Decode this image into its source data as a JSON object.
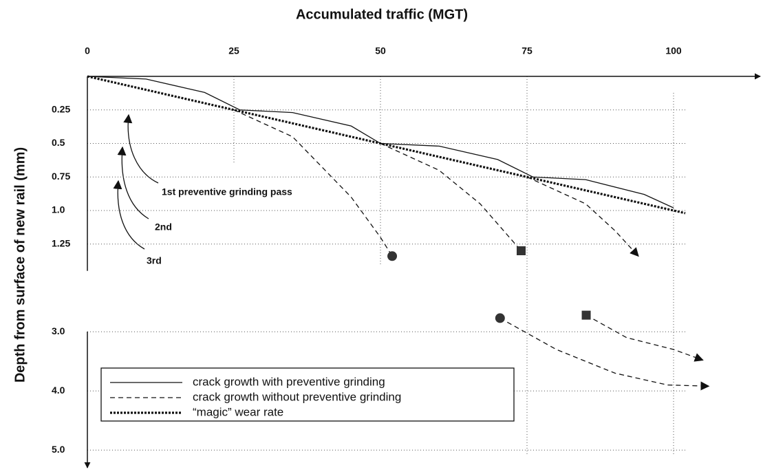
{
  "chart_data": {
    "type": "line",
    "title": "Accumulated traffic (MGT)",
    "y_label": "Depth from surface of new rail (mm)",
    "xlim": [
      0,
      115
    ],
    "ylim": [
      0,
      5.3
    ],
    "xticks": [
      0,
      25,
      50,
      75,
      100
    ],
    "yticks": [
      0.25,
      0.5,
      0.75,
      {
        "value": 1,
        "label": "1.0"
      },
      1.25,
      {
        "value": 3,
        "label": "3.0"
      },
      {
        "value": 4,
        "label": "4.0"
      },
      {
        "value": 5,
        "label": "5.0"
      }
    ],
    "y_break": [
      1.45,
      2.8
    ],
    "y_inverted": true,
    "grid": true,
    "series": [
      {
        "name": "crack growth with preventive grinding",
        "color": "#111111",
        "style": "solid",
        "x": [
          0,
          10,
          20,
          26,
          35,
          45,
          50,
          60,
          70,
          76,
          85,
          95,
          100
        ],
        "values": [
          0,
          0.02,
          0.12,
          0.25,
          0.27,
          0.37,
          0.5,
          0.52,
          0.62,
          0.75,
          0.77,
          0.88,
          0.98
        ]
      },
      {
        "name": "crack growth without preventive grinding",
        "color": "#111111",
        "style": "dashed",
        "x": [
          25,
          35,
          45,
          50,
          52,
          null,
          50,
          60,
          67,
          72,
          74,
          null,
          75,
          85,
          90,
          94,
          null,
          70.4,
          80,
          90,
          99,
          106,
          null,
          85.1,
          92,
          100,
          105
        ],
        "values": [
          0.25,
          0.45,
          0.9,
          1.2,
          1.34,
          null,
          0.5,
          0.7,
          0.95,
          1.2,
          1.3,
          null,
          0.75,
          0.95,
          1.15,
          1.34,
          null,
          2.77,
          3.3,
          3.7,
          3.9,
          3.92,
          null,
          2.72,
          3.1,
          3.3,
          3.48
        ],
        "arrows": [
          false,
          false,
          true,
          true,
          true
        ]
      },
      {
        "name": "“magic” wear rate",
        "color": "#111111",
        "style": "dotted",
        "x": [
          0,
          102
        ],
        "values": [
          0,
          1.02
        ]
      }
    ],
    "markers": [
      {
        "shape": "circle",
        "x": 52,
        "y": 1.34
      },
      {
        "shape": "square",
        "x": 74,
        "y": 1.3
      },
      {
        "shape": "circle",
        "x": 70.4,
        "y": 2.77
      },
      {
        "shape": "square",
        "x": 85.1,
        "y": 2.72
      }
    ],
    "annotations": [
      "1st preventive grinding pass",
      "2nd",
      "3rd"
    ]
  }
}
